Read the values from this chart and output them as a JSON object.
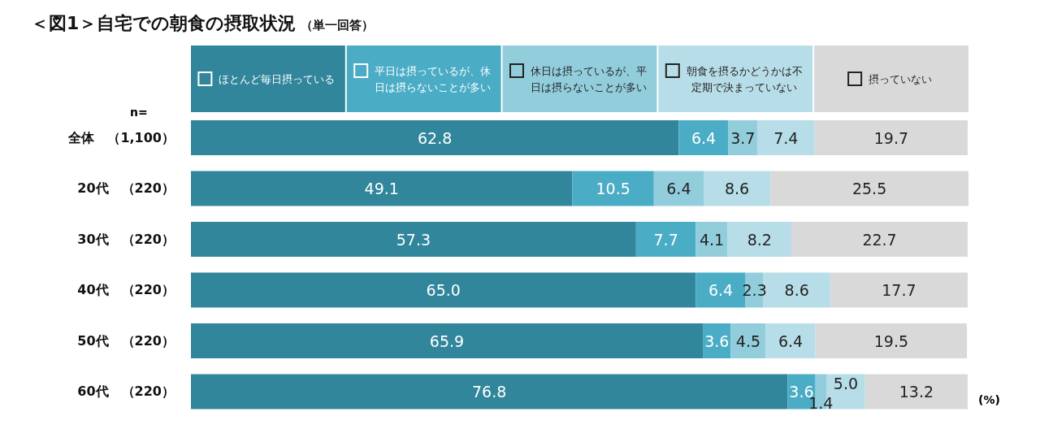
{
  "chart_data": {
    "type": "bar",
    "orientation": "horizontal",
    "stacked": true,
    "title": "＜図1＞自宅での朝食の摂取状況",
    "subtitle": "（単一回答）",
    "categories": [
      "全体　（1,100）",
      "20代　（220）",
      "30代　（220）",
      "40代　（220）",
      "50代　（220）",
      "60代　（220）"
    ],
    "series": [
      {
        "name": "ほとんど毎日摂っている",
        "color": "#31869b",
        "values": [
          62.8,
          49.1,
          57.3,
          65.0,
          65.9,
          76.8
        ],
        "value_labels": [
          "62.8",
          "49.1",
          "57.3",
          "65.0",
          "65.9",
          "76.8"
        ]
      },
      {
        "name": "平日は摂っているが、休日は摂らないことが多い",
        "color": "#4bacc6",
        "values": [
          6.4,
          10.5,
          7.7,
          6.4,
          3.6,
          3.6
        ],
        "value_labels": [
          "6.4",
          "10.5",
          "7.7",
          "6.4",
          "3.6",
          "3.6"
        ]
      },
      {
        "name": "休日は摂っているが、平日は摂らないことが多い",
        "color": "#92cddc",
        "values": [
          3.7,
          6.4,
          4.1,
          2.3,
          4.5,
          1.4
        ],
        "value_labels": [
          "3.7",
          "6.4",
          "4.1",
          "2.3",
          "4.5",
          "1.4"
        ]
      },
      {
        "name": "朝食を摂るかどうかは不定期で決まっていない",
        "color": "#b7dee8",
        "values": [
          7.4,
          8.6,
          8.2,
          8.6,
          6.4,
          5.0
        ],
        "value_labels": [
          "7.4",
          "8.6",
          "8.2",
          "8.6",
          "6.4",
          "5.0"
        ]
      },
      {
        "name": "摂っていない",
        "color": "#d9d9d9",
        "values": [
          19.7,
          25.5,
          22.7,
          17.7,
          19.5,
          13.2
        ],
        "value_labels": [
          "19.7",
          "25.5",
          "22.7",
          "17.7",
          "19.5",
          "13.2"
        ]
      }
    ],
    "legend": "top",
    "grid": false,
    "annotations": [
      "n=",
      "(%)"
    ]
  }
}
